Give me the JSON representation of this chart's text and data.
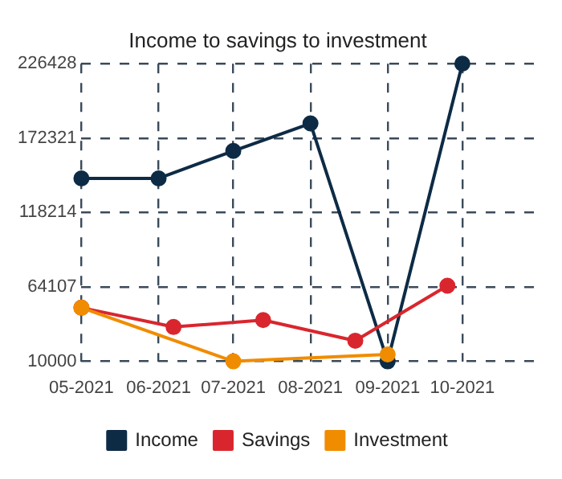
{
  "chart_data": {
    "type": "line",
    "title": "Income to savings to investment",
    "xlim": [
      "2021-05",
      "2021-11"
    ],
    "xticks": [
      {
        "value": "2021-05",
        "label": "05-2021"
      },
      {
        "value": "2021-06",
        "label": "06-2021"
      },
      {
        "value": "2021-07",
        "label": "07-2021"
      },
      {
        "value": "2021-08",
        "label": "08-2021"
      },
      {
        "value": "2021-09",
        "label": "09-2021"
      },
      {
        "value": "2021-10",
        "label": "10-2021"
      }
    ],
    "ylim": [
      10000,
      226428
    ],
    "yticks": [
      10000,
      64107,
      118214,
      172321,
      226428
    ],
    "series": [
      {
        "name": "Income",
        "color": "#0d2b45",
        "x": [
          "2021-05",
          "2021-06",
          "2021-07",
          "2021-08",
          "2021-09",
          "2021-10"
        ],
        "values": [
          143000,
          143000,
          163000,
          183000,
          10000,
          226428
        ]
      },
      {
        "name": "Savings",
        "color": "#d9262e",
        "x": [
          "2021-05-01",
          "2021-06-07",
          "2021-07-13",
          "2021-08-19",
          "2021-09-25"
        ],
        "values": [
          49000,
          35000,
          40000,
          25000,
          65000
        ]
      },
      {
        "name": "Investment",
        "color": "#f08c00",
        "x": [
          "2021-05",
          "2021-07",
          "2021-09"
        ],
        "values": [
          49000,
          10000,
          15000
        ]
      }
    ],
    "grid": true,
    "legend": "bottom",
    "marker": "circle",
    "line_style": "solid"
  }
}
